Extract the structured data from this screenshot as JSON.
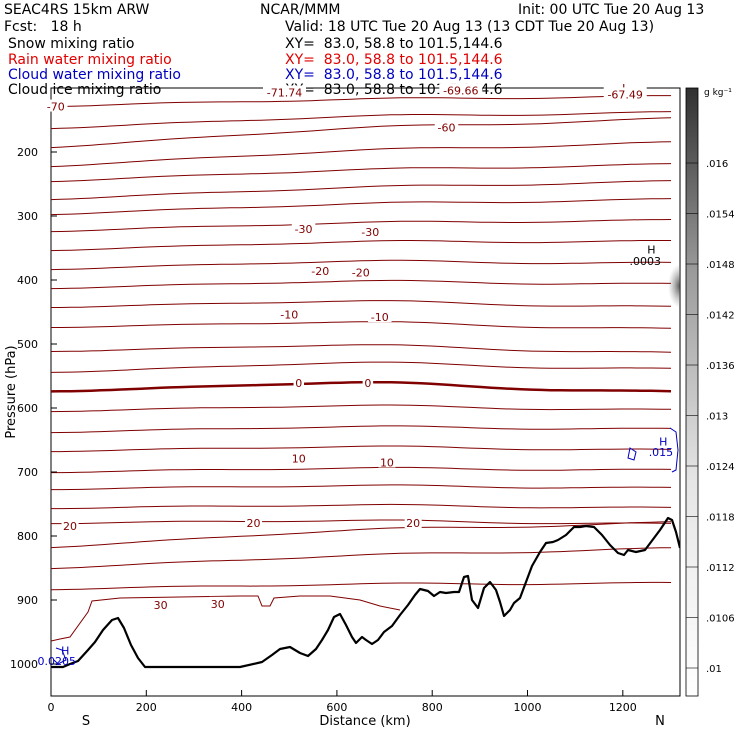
{
  "header": {
    "model": "SEAC4RS 15km ARW",
    "fcst": "Fcst:   18 h",
    "org": "NCAR/MMM",
    "init": "Init: 00 UTC Tue 20 Aug 13",
    "valid": "Valid: 18 UTC Tue 20 Aug 13 (13 CDT Tue 20 Aug 13)"
  },
  "fields": [
    {
      "label": "Snow mixing ratio",
      "xy": "XY=  83.0, 58.8 to 101.5,144.6",
      "color": "#000000"
    },
    {
      "label": "Rain water mixing ratio",
      "xy": "XY=  83.0, 58.8 to 101.5,144.6",
      "color": "#e00000"
    },
    {
      "label": "Cloud water mixing ratio",
      "xy": "XY=  83.0, 58.8 to 101.5,144.6",
      "color": "#0000c0"
    },
    {
      "label": "Cloud ice mixing ratio",
      "xy": "XY=  83.0, 58.8 to 101.5,144.6",
      "color": "#000000"
    }
  ],
  "chart_data": {
    "type": "contour",
    "xlabel": "Distance (km)",
    "ylabel": "Pressure (hPa)",
    "xlim": [
      0,
      1320
    ],
    "ylim": [
      1050,
      100
    ],
    "xticks": [
      0,
      200,
      400,
      600,
      800,
      1000,
      1200
    ],
    "yticks": [
      200,
      300,
      400,
      500,
      600,
      700,
      800,
      900,
      1000
    ],
    "x_end_labels": {
      "left": "S",
      "right": "N"
    },
    "colorbar": {
      "unit": "g kg⁻¹",
      "labels": [
        ".016",
        ".0154",
        ".0148",
        ".0142",
        ".0136",
        ".013",
        ".0124",
        ".0118",
        ".0112",
        ".0106",
        ".01"
      ]
    },
    "contour_color": "#800000",
    "temperature_labels": [
      {
        "text": "-70",
        "x": 10,
        "p": 129
      },
      {
        "text": "-71.74",
        "x": 490,
        "p": 107
      },
      {
        "text": "-69.66",
        "x": 860,
        "p": 104
      },
      {
        "text": "L",
        "x": 1205,
        "p": 100
      },
      {
        "text": "-67.49",
        "x": 1205,
        "p": 110
      },
      {
        "text": "-60",
        "x": 830,
        "p": 162
      },
      {
        "text": "-30",
        "x": 530,
        "p": 320
      },
      {
        "text": "-30",
        "x": 670,
        "p": 325
      },
      {
        "text": "-20",
        "x": 565,
        "p": 386
      },
      {
        "text": "-20",
        "x": 650,
        "p": 388
      },
      {
        "text": "-10",
        "x": 500,
        "p": 454
      },
      {
        "text": "-10",
        "x": 690,
        "p": 458
      },
      {
        "text": "0",
        "x": 520,
        "p": 561
      },
      {
        "text": "0",
        "x": 665,
        "p": 561
      },
      {
        "text": "10",
        "x": 520,
        "p": 679
      },
      {
        "text": "10",
        "x": 705,
        "p": 685
      },
      {
        "text": "20",
        "x": 40,
        "p": 784
      },
      {
        "text": "20",
        "x": 425,
        "p": 780
      },
      {
        "text": "20",
        "x": 760,
        "p": 780
      },
      {
        "text": "30",
        "x": 230,
        "p": 908
      },
      {
        "text": "30",
        "x": 350,
        "p": 906
      }
    ],
    "extrema_labels": [
      {
        "text": "H",
        "x": 1260,
        "p": 352,
        "color": "#000000"
      },
      {
        "text": ".0003",
        "x": 1247,
        "p": 370,
        "color": "#000000"
      },
      {
        "text": "H",
        "x": 1285,
        "p": 652,
        "color": "#0000c0"
      },
      {
        "text": ".015",
        "x": 1280,
        "p": 669,
        "color": "#0000c0"
      },
      {
        "text": "H",
        "x": 30,
        "p": 979,
        "color": "#0000c0"
      },
      {
        "text": "0.0205",
        "x": 12,
        "p": 995,
        "color": "#0000c0"
      }
    ]
  }
}
